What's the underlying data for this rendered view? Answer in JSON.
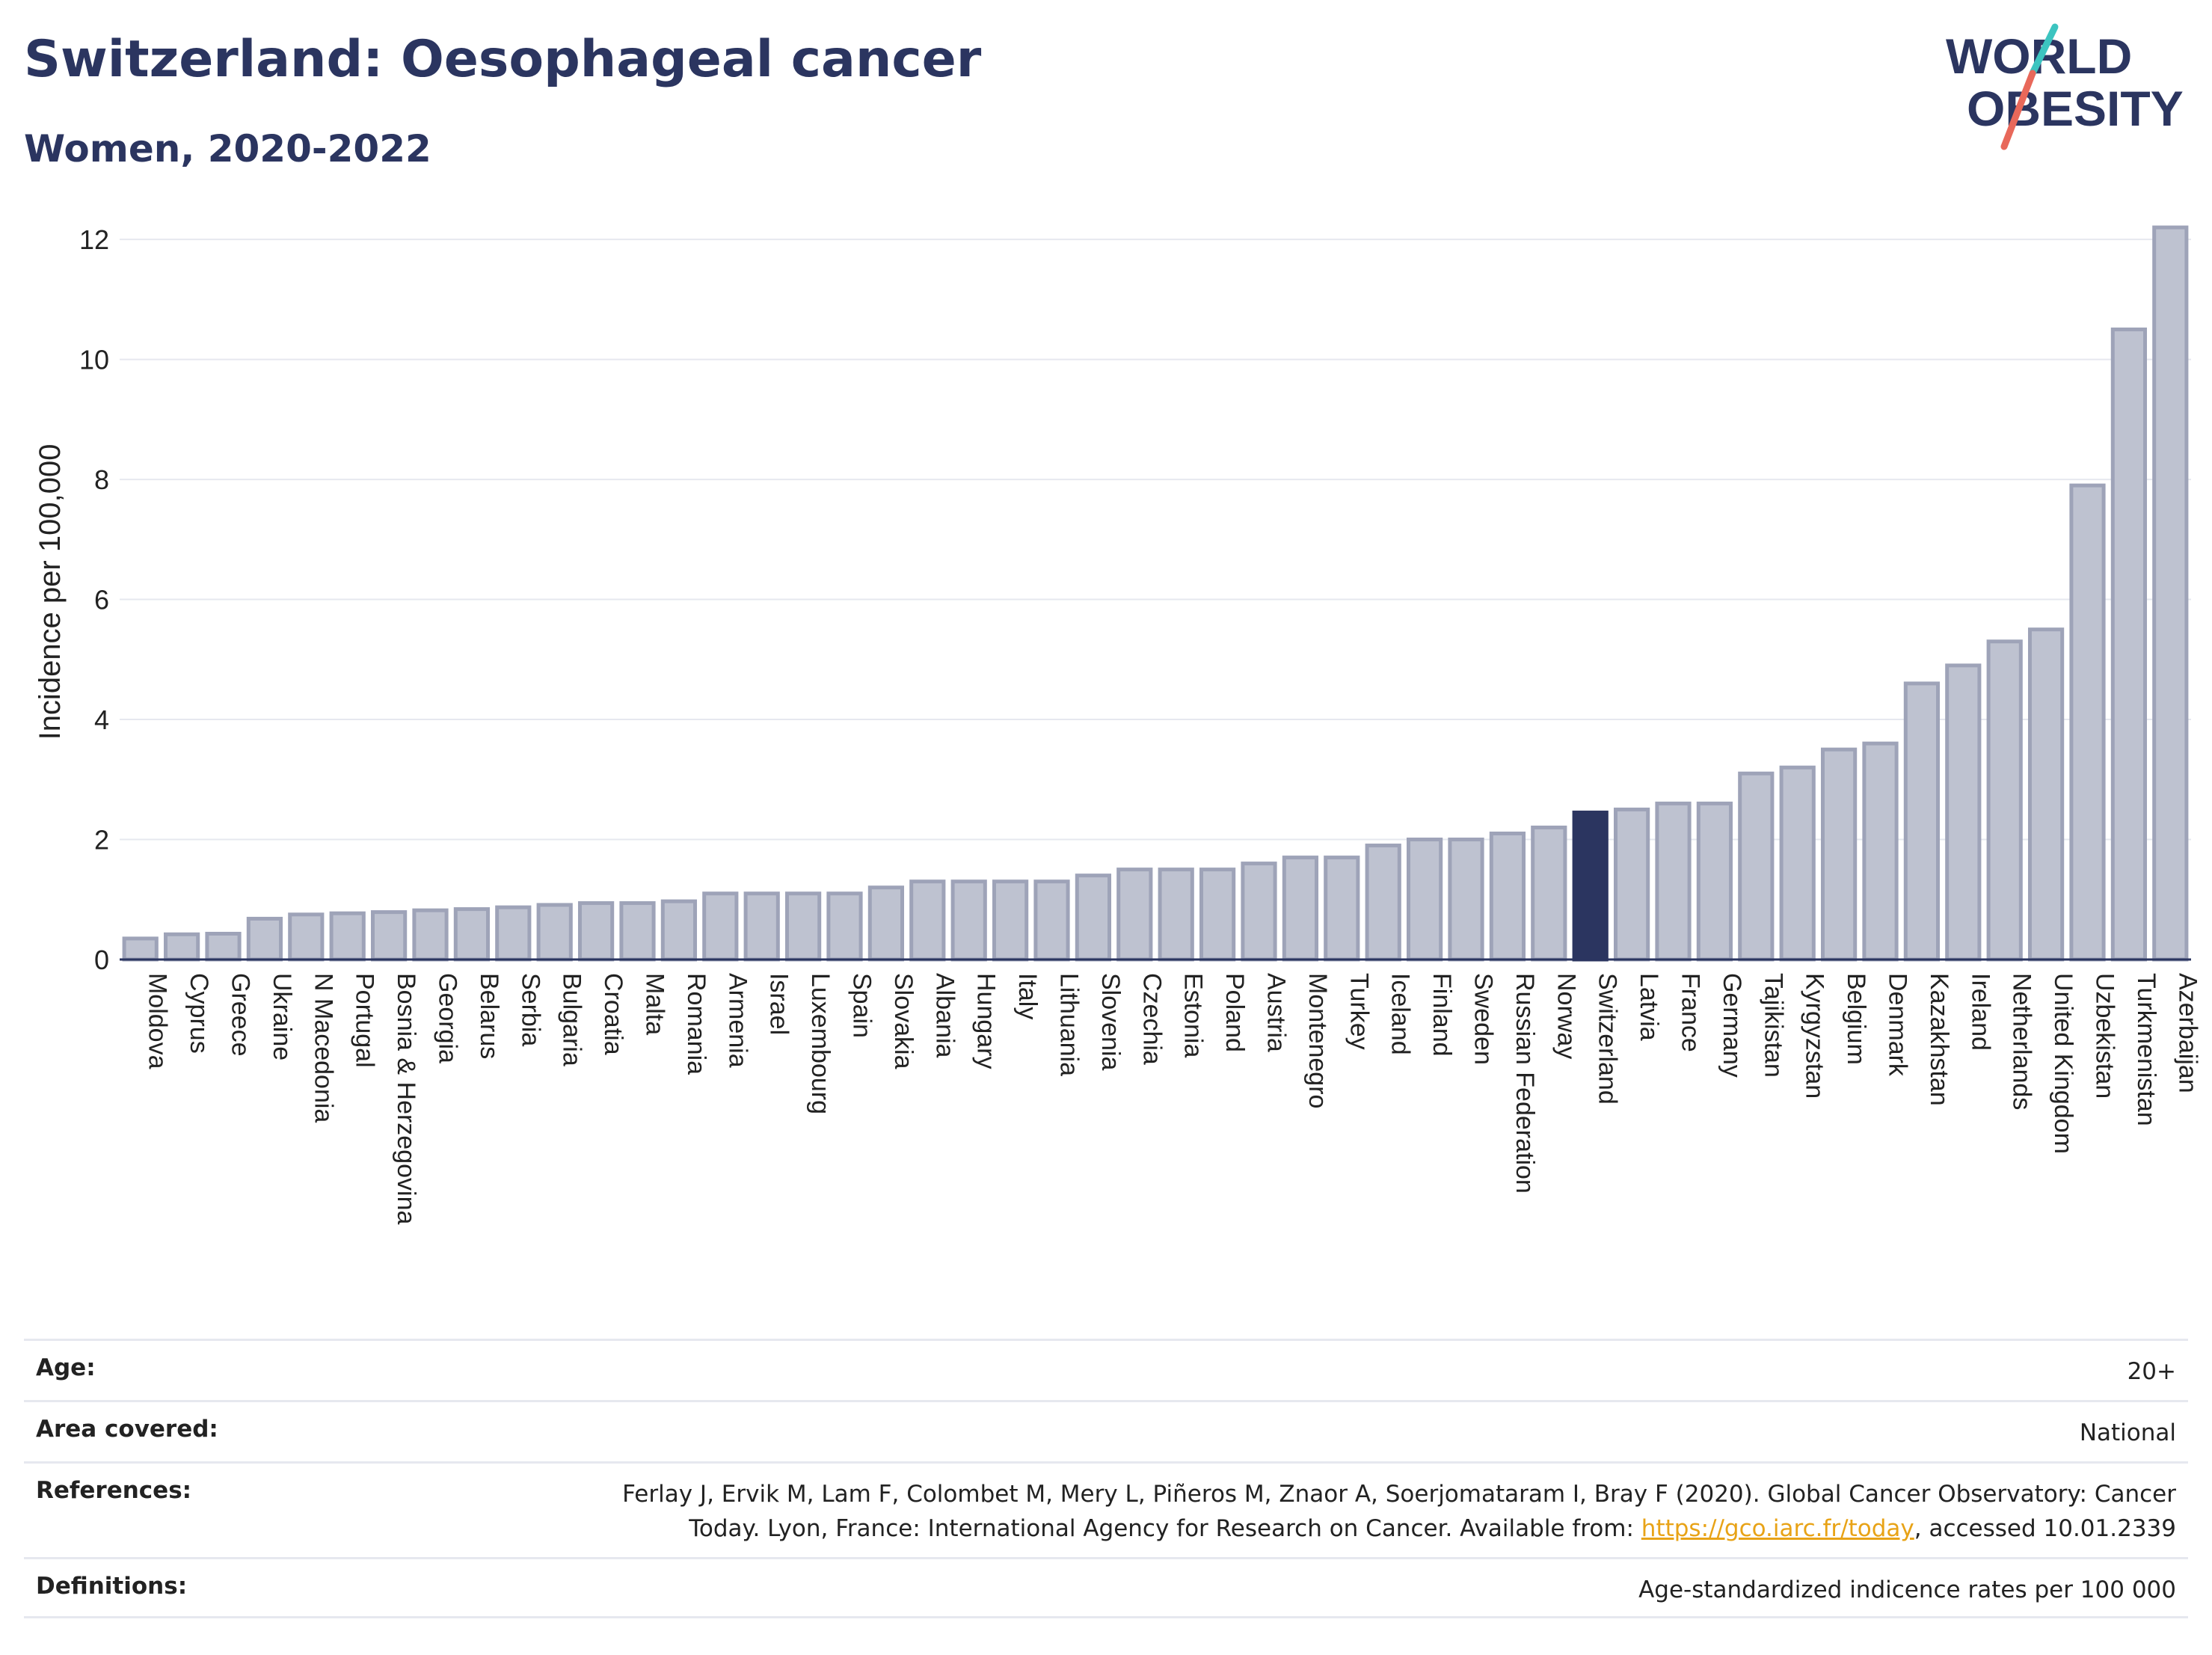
{
  "header": {
    "title": "Switzerland: Oesophageal cancer",
    "subtitle": "Women, 2020-2022"
  },
  "logo": {
    "line1": "WORLD",
    "line2": "OBESITY",
    "accent_teal": "#3cc4c0",
    "accent_coral": "#e8685a",
    "text_color": "#2b3560"
  },
  "colors": {
    "bar_default": "#bec2d0",
    "bar_default_stroke": "#9ea3b8",
    "bar_highlight": "#2b3560",
    "grid": "#e6e8ef",
    "axis": "#2b3560"
  },
  "chart_data": {
    "type": "bar",
    "title": "Switzerland: Oesophageal cancer",
    "ylabel": "Incidence per 100,000",
    "xlabel": "",
    "ylim": [
      0,
      12.5
    ],
    "yticks": [
      0,
      2,
      4,
      6,
      8,
      10,
      12
    ],
    "grid": true,
    "highlight": "Switzerland",
    "categories": [
      "Moldova",
      "Cyprus",
      "Greece",
      "Ukraine",
      "N Macedonia",
      "Portugal",
      "Bosnia & Herzegovina",
      "Georgia",
      "Belarus",
      "Serbia",
      "Bulgaria",
      "Croatia",
      "Malta",
      "Romania",
      "Armenia",
      "Israel",
      "Luxembourg",
      "Spain",
      "Slovakia",
      "Albania",
      "Hungary",
      "Italy",
      "Lithuania",
      "Slovenia",
      "Czechia",
      "Estonia",
      "Poland",
      "Austria",
      "Montenegro",
      "Turkey",
      "Iceland",
      "Finland",
      "Sweden",
      "Russian Federation",
      "Norway",
      "Switzerland",
      "Latvia",
      "France",
      "Germany",
      "Tajikistan",
      "Kyrgyzstan",
      "Belgium",
      "Denmark",
      "Kazakhstan",
      "Ireland",
      "Netherlands",
      "United Kingdom",
      "Uzbekistan",
      "Turkmenistan",
      "Azerbaijan"
    ],
    "values": [
      0.35,
      0.42,
      0.43,
      0.68,
      0.75,
      0.77,
      0.79,
      0.82,
      0.84,
      0.87,
      0.91,
      0.94,
      0.94,
      0.97,
      1.1,
      1.1,
      1.1,
      1.1,
      1.2,
      1.3,
      1.3,
      1.3,
      1.3,
      1.4,
      1.5,
      1.5,
      1.5,
      1.6,
      1.7,
      1.7,
      1.9,
      2.0,
      2.0,
      2.1,
      2.2,
      2.45,
      2.5,
      2.6,
      2.6,
      3.1,
      3.2,
      3.5,
      3.6,
      4.6,
      4.9,
      5.3,
      5.5,
      7.9,
      10.5,
      12.2
    ]
  },
  "info": {
    "age_label": "Age:",
    "age_value": "20+",
    "area_label": "Area covered:",
    "area_value": "National",
    "ref_label": "References:",
    "ref_text_1": "Ferlay J, Ervik M, Lam F, Colombet M, Mery L, Piñeros M, Znaor A, Soerjomataram I, Bray F (2020). Global Cancer Observatory: Cancer",
    "ref_text_2": "Today. Lyon, France: International Agency for Research on Cancer. Available from: ",
    "ref_link": "https://gco.iarc.fr/today",
    "ref_text_3": ", accessed 10.01.2339",
    "def_label": "Definitions:",
    "def_value": "Age-standardized indicence rates per 100 000"
  }
}
